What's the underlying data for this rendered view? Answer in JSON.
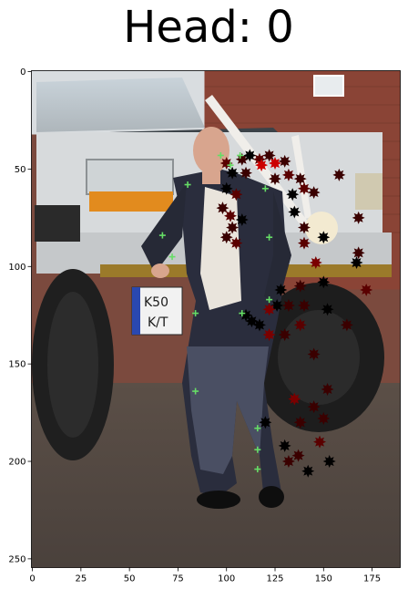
{
  "chart_data": {
    "type": "scatter",
    "title": "Head: 0",
    "xlabel": "",
    "ylabel": "",
    "xlim": [
      -0.5,
      189.5
    ],
    "ylim": [
      254.5,
      -0.5
    ],
    "y_inverted": true,
    "grid": false,
    "background": "photo: man in dark suit leaning on white truck with large tyres, brick building behind",
    "xticks": [
      0,
      25,
      50,
      75,
      100,
      125,
      150,
      175
    ],
    "yticks": [
      0,
      50,
      100,
      150,
      200,
      250
    ],
    "series": [
      {
        "marker": "plus",
        "color": "#66dd66",
        "points": [
          [
            97,
            43
          ],
          [
            107,
            43
          ],
          [
            102,
            48
          ],
          [
            80,
            58
          ],
          [
            120,
            60
          ],
          [
            67,
            84
          ],
          [
            122,
            85
          ],
          [
            72,
            95
          ],
          [
            122,
            117
          ],
          [
            84,
            124
          ],
          [
            108,
            124
          ],
          [
            84,
            164
          ],
          [
            116,
            183
          ],
          [
            116,
            194
          ],
          [
            116,
            204
          ]
        ]
      },
      {
        "marker": "star",
        "colors": [
          "#000000",
          "#3a0000",
          "#5a0000",
          "#7a0000",
          "#cc0000"
        ],
        "points": [
          [
            100,
            47,
            "#5a0000"
          ],
          [
            108,
            45,
            "#3a0000"
          ],
          [
            112,
            43,
            "#000000"
          ],
          [
            117,
            45,
            "#5a0000"
          ],
          [
            122,
            43,
            "#3a0000"
          ],
          [
            130,
            46,
            "#3a0000"
          ],
          [
            118,
            48,
            "#cc0000"
          ],
          [
            125,
            47,
            "#cc0000"
          ],
          [
            110,
            52,
            "#3a0000"
          ],
          [
            103,
            52,
            "#000000"
          ],
          [
            125,
            55,
            "#3a0000"
          ],
          [
            132,
            53,
            "#5a0000"
          ],
          [
            138,
            55,
            "#3a0000"
          ],
          [
            140,
            60,
            "#5a0000"
          ],
          [
            134,
            63,
            "#000000"
          ],
          [
            158,
            53,
            "#3a0000"
          ],
          [
            145,
            62,
            "#3a0000"
          ],
          [
            100,
            60,
            "#000000"
          ],
          [
            105,
            63,
            "#5a0000"
          ],
          [
            98,
            70,
            "#3a0000"
          ],
          [
            102,
            74,
            "#5a0000"
          ],
          [
            103,
            80,
            "#3a0000"
          ],
          [
            108,
            76,
            "#000000"
          ],
          [
            100,
            85,
            "#3a0000"
          ],
          [
            105,
            88,
            "#5a0000"
          ],
          [
            135,
            72,
            "#000000"
          ],
          [
            140,
            80,
            "#3a0000"
          ],
          [
            150,
            85,
            "#000000"
          ],
          [
            140,
            88,
            "#5a0000"
          ],
          [
            146,
            98,
            "#7a0000"
          ],
          [
            150,
            108,
            "#000000"
          ],
          [
            168,
            75,
            "#3a0000"
          ],
          [
            168,
            93,
            "#3a0000"
          ],
          [
            167,
            98,
            "#000000"
          ],
          [
            128,
            112,
            "#000000"
          ],
          [
            138,
            110,
            "#3a0000"
          ],
          [
            172,
            112,
            "#5a0000"
          ],
          [
            132,
            120,
            "#3a0000"
          ],
          [
            126,
            120,
            "#000000"
          ],
          [
            122,
            122,
            "#7a0000"
          ],
          [
            140,
            120,
            "#3a0000"
          ],
          [
            152,
            122,
            "#000000"
          ],
          [
            110,
            125,
            "#000000"
          ],
          [
            113,
            128,
            "#000000"
          ],
          [
            117,
            130,
            "#000000"
          ],
          [
            162,
            130,
            "#3a0000"
          ],
          [
            138,
            130,
            "#5a0000"
          ],
          [
            122,
            135,
            "#7a0000"
          ],
          [
            130,
            135,
            "#3a0000"
          ],
          [
            145,
            145,
            "#3a0000"
          ],
          [
            152,
            163,
            "#3a0000"
          ],
          [
            135,
            168,
            "#7a0000"
          ],
          [
            145,
            172,
            "#3a0000"
          ],
          [
            150,
            178,
            "#3a0000"
          ],
          [
            120,
            180,
            "#000000"
          ],
          [
            138,
            180,
            "#3a0000"
          ],
          [
            148,
            190,
            "#5a0000"
          ],
          [
            130,
            192,
            "#000000"
          ],
          [
            137,
            197,
            "#3a0000"
          ],
          [
            132,
            200,
            "#3a0000"
          ],
          [
            153,
            200,
            "#000000"
          ],
          [
            142,
            205,
            "#000000"
          ]
        ]
      }
    ]
  }
}
